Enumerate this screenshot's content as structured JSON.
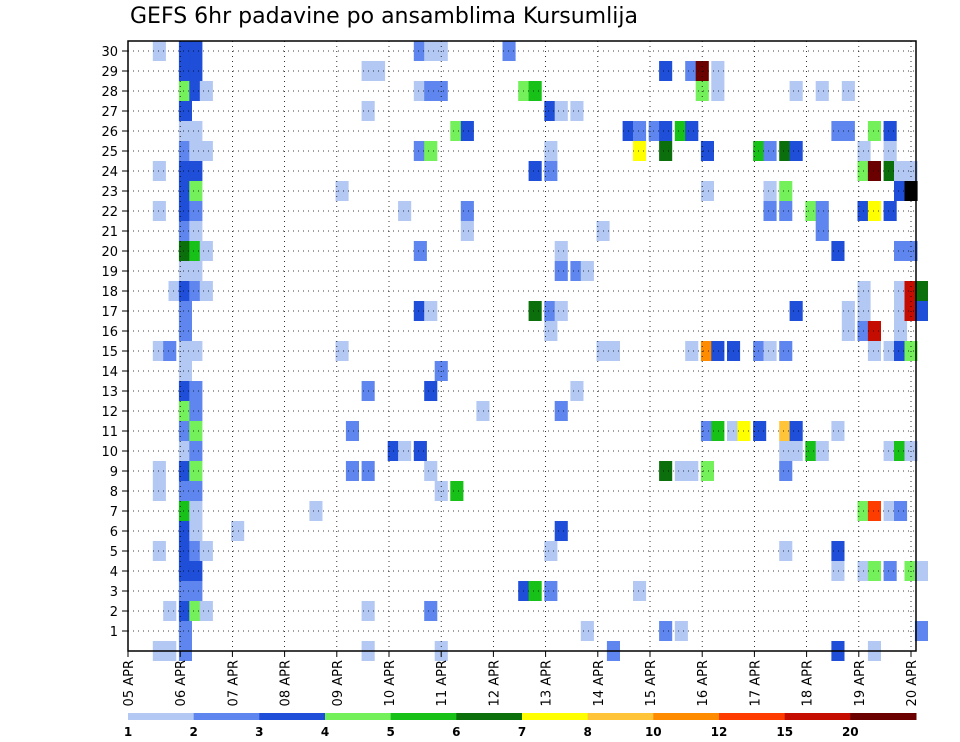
{
  "chart_data": {
    "type": "heatmap",
    "title": "GEFS 6hr padavine po ansamblima Kursumlija",
    "xlabel": "",
    "ylabel": "",
    "x_tick_labels": [
      "05 APR",
      "06 APR",
      "07 APR",
      "08 APR",
      "09 APR",
      "10 APR",
      "11 APR",
      "12 APR",
      "13 APR",
      "14 APR",
      "15 APR",
      "16 APR",
      "17 APR",
      "18 APR",
      "19 APR",
      "20 APR"
    ],
    "y_tick_labels": [
      1,
      2,
      3,
      4,
      5,
      6,
      7,
      8,
      9,
      10,
      11,
      12,
      13,
      14,
      15,
      16,
      17,
      18,
      19,
      20,
      21,
      22,
      23,
      24,
      25,
      26,
      27,
      28,
      29,
      30
    ],
    "x_range_days": [
      0,
      15.1
    ],
    "y_range": [
      0,
      30
    ],
    "time_step_hours": 6,
    "grid": "dotted",
    "colorbar": {
      "position": "bottom",
      "levels": [
        1,
        2,
        3,
        4,
        5,
        6,
        7,
        8,
        10,
        12,
        15,
        20
      ],
      "level_labels": [
        "1",
        "2",
        "3",
        "4",
        "5",
        "6",
        "7",
        "8",
        "10",
        "12",
        "15",
        "20"
      ],
      "colors": [
        "#b4c8f4",
        "#5f86ee",
        "#1f4ed8",
        "#73f05a",
        "#17c117",
        "#0b6f0b",
        "#ffff00",
        "#ffc438",
        "#ff8c00",
        "#ff3c00",
        "#c40c00",
        "#6a0000"
      ]
    },
    "cells": [
      [
        0.6,
        30,
        0
      ],
      [
        1.1,
        30,
        2
      ],
      [
        1.3,
        30,
        2
      ],
      [
        1.1,
        29,
        2
      ],
      [
        1.3,
        29,
        2
      ],
      [
        1.1,
        28,
        3
      ],
      [
        1.3,
        28,
        2
      ],
      [
        1.5,
        28,
        0
      ],
      [
        1.1,
        27,
        2
      ],
      [
        1.1,
        26,
        0
      ],
      [
        1.3,
        26,
        0
      ],
      [
        1.1,
        25,
        1
      ],
      [
        1.3,
        25,
        0
      ],
      [
        1.5,
        25,
        0
      ],
      [
        0.6,
        24,
        0
      ],
      [
        1.1,
        24,
        2
      ],
      [
        1.3,
        24,
        2
      ],
      [
        1.1,
        23,
        2
      ],
      [
        1.3,
        23,
        3
      ],
      [
        1.1,
        22,
        2
      ],
      [
        1.3,
        22,
        1
      ],
      [
        0.6,
        22,
        0
      ],
      [
        1.1,
        21,
        1
      ],
      [
        1.3,
        21,
        0
      ],
      [
        1.1,
        20,
        5
      ],
      [
        1.3,
        20,
        4
      ],
      [
        1.5,
        20,
        0
      ],
      [
        1.1,
        19,
        0
      ],
      [
        1.3,
        19,
        0
      ],
      [
        0.9,
        18,
        0
      ],
      [
        1.1,
        18,
        2
      ],
      [
        1.3,
        18,
        1
      ],
      [
        1.5,
        18,
        0
      ],
      [
        1.1,
        17,
        1
      ],
      [
        1.1,
        16,
        1
      ],
      [
        1.1,
        15,
        0
      ],
      [
        1.3,
        15,
        0
      ],
      [
        0.6,
        15,
        0
      ],
      [
        0.8,
        15,
        1
      ],
      [
        1.1,
        14,
        0
      ],
      [
        1.1,
        13,
        2
      ],
      [
        1.3,
        13,
        1
      ],
      [
        1.1,
        12,
        3
      ],
      [
        1.3,
        12,
        1
      ],
      [
        1.1,
        11,
        1
      ],
      [
        1.3,
        11,
        3
      ],
      [
        1.1,
        10,
        0
      ],
      [
        1.3,
        10,
        1
      ],
      [
        1.1,
        9,
        2
      ],
      [
        1.3,
        9,
        3
      ],
      [
        0.6,
        9,
        0
      ],
      [
        1.1,
        8,
        1
      ],
      [
        1.3,
        8,
        1
      ],
      [
        0.6,
        8,
        0
      ],
      [
        1.1,
        7,
        4
      ],
      [
        1.3,
        7,
        0
      ],
      [
        1.1,
        6,
        2
      ],
      [
        1.3,
        6,
        0
      ],
      [
        1.1,
        5,
        2
      ],
      [
        1.3,
        5,
        1
      ],
      [
        1.5,
        5,
        0
      ],
      [
        0.6,
        5,
        0
      ],
      [
        1.1,
        4,
        2
      ],
      [
        1.3,
        4,
        2
      ],
      [
        1.1,
        3,
        1
      ],
      [
        1.3,
        3,
        1
      ],
      [
        1.1,
        2,
        2
      ],
      [
        1.3,
        2,
        3
      ],
      [
        1.5,
        2,
        0
      ],
      [
        0.8,
        2,
        0
      ],
      [
        1.1,
        1,
        1
      ],
      [
        1.1,
        0,
        1
      ],
      [
        0.6,
        0,
        0
      ],
      [
        0.8,
        0,
        0
      ],
      [
        4.6,
        29,
        0
      ],
      [
        4.8,
        29,
        0
      ],
      [
        5.6,
        30,
        1
      ],
      [
        5.8,
        30,
        0
      ],
      [
        6.0,
        30,
        0
      ],
      [
        5.6,
        28,
        0
      ],
      [
        5.8,
        28,
        1
      ],
      [
        6.0,
        28,
        1
      ],
      [
        4.6,
        27,
        0
      ],
      [
        6.3,
        26,
        3
      ],
      [
        6.5,
        26,
        2
      ],
      [
        5.6,
        25,
        1
      ],
      [
        5.8,
        25,
        3
      ],
      [
        4.1,
        23,
        0
      ],
      [
        5.3,
        22,
        0
      ],
      [
        6.5,
        22,
        1
      ],
      [
        6.5,
        21,
        0
      ],
      [
        5.6,
        20,
        1
      ],
      [
        5.6,
        17,
        2
      ],
      [
        5.8,
        17,
        0
      ],
      [
        4.1,
        15,
        0
      ],
      [
        6.0,
        14,
        1
      ],
      [
        4.6,
        13,
        1
      ],
      [
        5.8,
        13,
        2
      ],
      [
        4.3,
        11,
        1
      ],
      [
        5.1,
        10,
        2
      ],
      [
        5.3,
        10,
        0
      ],
      [
        5.6,
        10,
        2
      ],
      [
        4.3,
        9,
        1
      ],
      [
        4.6,
        9,
        1
      ],
      [
        5.8,
        9,
        0
      ],
      [
        6.0,
        8,
        0
      ],
      [
        6.3,
        8,
        4
      ],
      [
        3.6,
        7,
        0
      ],
      [
        2.1,
        6,
        0
      ],
      [
        4.6,
        2,
        0
      ],
      [
        5.8,
        2,
        1
      ],
      [
        4.6,
        0,
        0
      ],
      [
        6.0,
        0,
        0
      ],
      [
        7.3,
        30,
        1
      ],
      [
        7.6,
        28,
        3
      ],
      [
        7.8,
        28,
        4
      ],
      [
        8.1,
        27,
        2
      ],
      [
        8.3,
        27,
        0
      ],
      [
        8.6,
        27,
        0
      ],
      [
        8.1,
        25,
        0
      ],
      [
        7.8,
        24,
        2
      ],
      [
        8.1,
        24,
        1
      ],
      [
        8.3,
        20,
        0
      ],
      [
        8.3,
        19,
        1
      ],
      [
        8.6,
        19,
        1
      ],
      [
        8.8,
        19,
        0
      ],
      [
        7.8,
        17,
        5
      ],
      [
        8.1,
        17,
        1
      ],
      [
        8.3,
        17,
        0
      ],
      [
        8.1,
        16,
        0
      ],
      [
        9.1,
        15,
        0
      ],
      [
        9.3,
        15,
        0
      ],
      [
        6.8,
        12,
        0
      ],
      [
        8.3,
        12,
        1
      ],
      [
        8.6,
        13,
        0
      ],
      [
        8.3,
        6,
        2
      ],
      [
        8.1,
        5,
        0
      ],
      [
        7.6,
        3,
        2
      ],
      [
        7.8,
        3,
        4
      ],
      [
        8.1,
        3,
        1
      ],
      [
        9.8,
        3,
        0
      ],
      [
        8.8,
        1,
        0
      ],
      [
        9.3,
        0,
        1
      ],
      [
        9.1,
        21,
        0
      ],
      [
        10.3,
        29,
        2
      ],
      [
        10.8,
        29,
        1
      ],
      [
        11.0,
        29,
        11
      ],
      [
        11.3,
        29,
        0
      ],
      [
        11.0,
        28,
        3
      ],
      [
        11.3,
        28,
        0
      ],
      [
        12.8,
        28,
        0
      ],
      [
        13.3,
        28,
        0
      ],
      [
        13.8,
        28,
        0
      ],
      [
        9.6,
        26,
        2
      ],
      [
        9.8,
        26,
        1
      ],
      [
        10.1,
        26,
        1
      ],
      [
        10.3,
        26,
        2
      ],
      [
        10.6,
        26,
        4
      ],
      [
        10.8,
        26,
        2
      ],
      [
        13.6,
        26,
        1
      ],
      [
        13.8,
        26,
        1
      ],
      [
        14.3,
        26,
        3
      ],
      [
        14.6,
        26,
        2
      ],
      [
        9.8,
        25,
        6
      ],
      [
        10.3,
        25,
        5
      ],
      [
        11.1,
        25,
        2
      ],
      [
        12.1,
        25,
        4
      ],
      [
        12.3,
        25,
        1
      ],
      [
        12.6,
        25,
        5
      ],
      [
        12.8,
        25,
        2
      ],
      [
        14.1,
        25,
        0
      ],
      [
        14.6,
        25,
        0
      ],
      [
        14.1,
        24,
        3
      ],
      [
        14.3,
        24,
        11
      ],
      [
        14.6,
        24,
        5
      ],
      [
        14.8,
        24,
        0
      ],
      [
        15.0,
        24,
        0
      ],
      [
        11.1,
        23,
        0
      ],
      [
        12.3,
        23,
        0
      ],
      [
        12.6,
        23,
        3
      ],
      [
        14.8,
        23,
        2
      ],
      [
        15.0,
        23,
        12
      ],
      [
        12.3,
        22,
        1
      ],
      [
        12.6,
        22,
        1
      ],
      [
        13.1,
        22,
        3
      ],
      [
        13.3,
        22,
        1
      ],
      [
        14.1,
        22,
        2
      ],
      [
        14.3,
        22,
        6
      ],
      [
        14.6,
        22,
        2
      ],
      [
        13.3,
        21,
        1
      ],
      [
        13.6,
        20,
        2
      ],
      [
        14.8,
        20,
        1
      ],
      [
        15.0,
        20,
        1
      ],
      [
        14.1,
        18,
        0
      ],
      [
        14.8,
        18,
        0
      ],
      [
        15.0,
        18,
        10
      ],
      [
        15.2,
        18,
        5
      ],
      [
        12.8,
        17,
        2
      ],
      [
        13.8,
        17,
        0
      ],
      [
        14.1,
        17,
        0
      ],
      [
        14.8,
        17,
        0
      ],
      [
        15.0,
        17,
        10
      ],
      [
        15.2,
        17,
        2
      ],
      [
        13.8,
        16,
        0
      ],
      [
        14.1,
        16,
        1
      ],
      [
        14.3,
        16,
        10
      ],
      [
        14.8,
        16,
        0
      ],
      [
        10.8,
        15,
        0
      ],
      [
        11.1,
        15,
        8
      ],
      [
        11.3,
        15,
        2
      ],
      [
        11.6,
        15,
        2
      ],
      [
        12.1,
        15,
        1
      ],
      [
        12.3,
        15,
        0
      ],
      [
        12.6,
        15,
        1
      ],
      [
        14.3,
        15,
        0
      ],
      [
        14.6,
        15,
        0
      ],
      [
        14.8,
        15,
        2
      ],
      [
        15.0,
        15,
        3
      ],
      [
        11.1,
        11,
        1
      ],
      [
        11.3,
        11,
        4
      ],
      [
        11.6,
        11,
        0
      ],
      [
        11.8,
        11,
        6
      ],
      [
        12.1,
        11,
        2
      ],
      [
        12.6,
        11,
        7
      ],
      [
        12.8,
        11,
        2
      ],
      [
        13.6,
        11,
        0
      ],
      [
        12.6,
        10,
        0
      ],
      [
        12.8,
        10,
        0
      ],
      [
        13.1,
        10,
        4
      ],
      [
        13.3,
        10,
        0
      ],
      [
        14.6,
        10,
        0
      ],
      [
        14.8,
        10,
        4
      ],
      [
        15.0,
        10,
        0
      ],
      [
        10.3,
        9,
        5
      ],
      [
        10.6,
        9,
        0
      ],
      [
        10.8,
        9,
        0
      ],
      [
        11.1,
        9,
        3
      ],
      [
        12.6,
        9,
        1
      ],
      [
        14.1,
        7,
        3
      ],
      [
        14.3,
        7,
        9
      ],
      [
        14.6,
        7,
        0
      ],
      [
        14.8,
        7,
        1
      ],
      [
        12.6,
        5,
        0
      ],
      [
        13.6,
        5,
        2
      ],
      [
        13.6,
        4,
        0
      ],
      [
        14.1,
        4,
        0
      ],
      [
        14.3,
        4,
        3
      ],
      [
        14.6,
        4,
        1
      ],
      [
        15.0,
        4,
        3
      ],
      [
        15.2,
        4,
        0
      ],
      [
        10.3,
        1,
        1
      ],
      [
        10.6,
        1,
        0
      ],
      [
        15.2,
        1,
        1
      ],
      [
        13.6,
        0,
        2
      ],
      [
        14.3,
        0,
        0
      ]
    ]
  }
}
